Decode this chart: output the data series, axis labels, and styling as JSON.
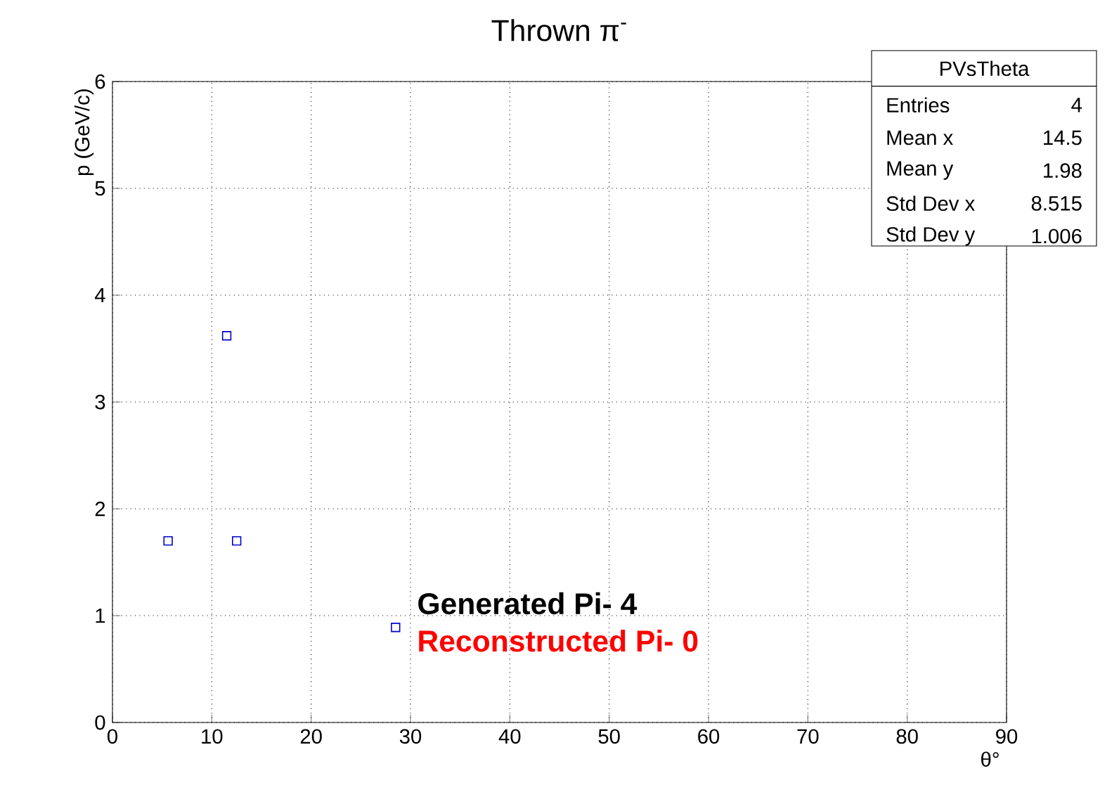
{
  "chart_data": {
    "type": "scatter",
    "title": "Thrown π$^{-}$",
    "xlabel": "θ°",
    "ylabel": "p (GeV/c)",
    "x": [
      5.6,
      11.5,
      12.5,
      28.5
    ],
    "values": [
      1.7,
      3.62,
      1.7,
      0.89
    ],
    "color": "#0000cc",
    "marker": "square",
    "grid": true,
    "xlim": [
      0,
      90
    ],
    "ylim": [
      0,
      6
    ],
    "xticks": [
      0,
      10,
      20,
      30,
      40,
      50,
      60,
      70,
      80,
      90
    ],
    "yticks": [
      0,
      1,
      2,
      3,
      4,
      5,
      6
    ],
    "annotations": [
      "PVsTheta",
      "Entries",
      "4",
      "Mean x",
      "14.5",
      "Mean y",
      "1.98",
      "Std Dev x",
      "8.515",
      "Std Dev y",
      "1.006",
      "Generated Pi- 4",
      "Reconstructed Pi- 0"
    ]
  }
}
